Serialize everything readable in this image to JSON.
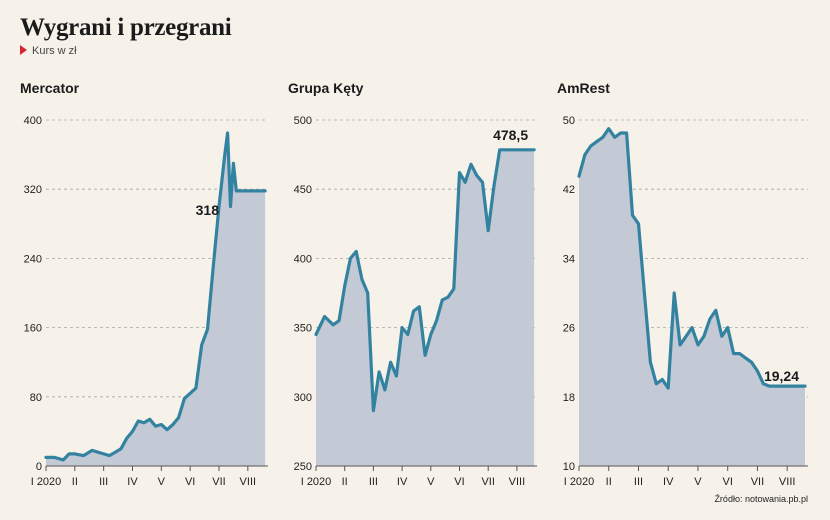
{
  "header": {
    "title": "Wygrani i przegrani",
    "subtitle": "Kurs w zł"
  },
  "source": "Źródło: notowania.pb.pl",
  "colors": {
    "line": "#3383a0",
    "area": "#c4c9d6",
    "marker": "#d6262f",
    "background": "#f6f2ea"
  },
  "chart_data": [
    {
      "type": "area",
      "title": "Mercator",
      "xlabel": "",
      "ylabel": "",
      "x_tick_labels": [
        "I 2020",
        "II",
        "III",
        "IV",
        "V",
        "VI",
        "VII",
        "VIII"
      ],
      "y_ticks": [
        0,
        80,
        160,
        240,
        320,
        400
      ],
      "ylim": [
        0,
        400
      ],
      "xlim": [
        0,
        7.7
      ],
      "grid": true,
      "last_label": "318",
      "series": [
        {
          "x": [
            0,
            0.3,
            0.6,
            0.8,
            1.0,
            1.3,
            1.6,
            1.8,
            2.0,
            2.2,
            2.4,
            2.6,
            2.8,
            3.0,
            3.2,
            3.4,
            3.6,
            3.8,
            4.0,
            4.2,
            4.4,
            4.6,
            4.8,
            5.0,
            5.2,
            5.4,
            5.6,
            5.8,
            6.0,
            6.1,
            6.2,
            6.3,
            6.4,
            6.5,
            6.6,
            6.65,
            6.7,
            6.75,
            6.8,
            6.85,
            6.9,
            6.95,
            7.0,
            7.1,
            7.2,
            7.3,
            7.35,
            7.4,
            7.5,
            7.6
          ],
          "y": [
            10,
            10,
            7,
            14,
            14,
            12,
            18,
            16,
            14,
            12,
            16,
            20,
            32,
            40,
            52,
            50,
            54,
            46,
            48,
            42,
            48,
            56,
            78,
            84,
            90,
            140,
            158,
            230,
            300,
            330,
            360,
            385,
            300,
            350,
            318,
            318,
            318,
            318,
            318,
            318,
            318,
            318,
            318,
            318,
            318,
            318,
            318,
            318,
            318,
            318
          ]
        }
      ]
    },
    {
      "type": "area",
      "title": "Grupa Kęty",
      "xlabel": "",
      "ylabel": "",
      "x_tick_labels": [
        "I 2020",
        "II",
        "III",
        "IV",
        "V",
        "VI",
        "VII",
        "VIII"
      ],
      "y_ticks": [
        250,
        300,
        350,
        400,
        450,
        500
      ],
      "ylim": [
        250,
        500
      ],
      "xlim": [
        0,
        7.7
      ],
      "grid": true,
      "last_label": "478,5",
      "series": [
        {
          "x": [
            0,
            0.3,
            0.6,
            0.8,
            1.0,
            1.2,
            1.4,
            1.6,
            1.8,
            2.0,
            2.2,
            2.4,
            2.6,
            2.8,
            3.0,
            3.2,
            3.4,
            3.6,
            3.8,
            4.0,
            4.2,
            4.4,
            4.6,
            4.8,
            5.0,
            5.2,
            5.4,
            5.6,
            5.8,
            6.0,
            6.2,
            6.4,
            6.6,
            6.8,
            7.0,
            7.2,
            7.4,
            7.6
          ],
          "y": [
            345,
            358,
            352,
            355,
            380,
            400,
            405,
            385,
            375,
            290,
            318,
            305,
            325,
            315,
            350,
            345,
            362,
            365,
            330,
            345,
            355,
            370,
            372,
            378,
            462,
            455,
            468,
            460,
            455,
            420,
            452,
            478.5,
            478.5,
            478.5,
            478.5,
            478.5,
            478.5,
            478.5
          ]
        }
      ]
    },
    {
      "type": "area",
      "title": "AmRest",
      "xlabel": "",
      "ylabel": "",
      "x_tick_labels": [
        "I 2020",
        "II",
        "III",
        "IV",
        "V",
        "VI",
        "VII",
        "VIII"
      ],
      "y_ticks": [
        10,
        18,
        26,
        34,
        42,
        50
      ],
      "ylim": [
        10,
        50
      ],
      "xlim": [
        0,
        7.7
      ],
      "grid": true,
      "last_label": "19,24",
      "series": [
        {
          "x": [
            0,
            0.2,
            0.4,
            0.6,
            0.8,
            1.0,
            1.2,
            1.4,
            1.6,
            1.8,
            2.0,
            2.2,
            2.4,
            2.6,
            2.8,
            3.0,
            3.2,
            3.4,
            3.6,
            3.8,
            4.0,
            4.2,
            4.4,
            4.6,
            4.8,
            5.0,
            5.2,
            5.4,
            5.6,
            5.8,
            6.0,
            6.2,
            6.4,
            6.6,
            6.8,
            7.0,
            7.2,
            7.4,
            7.6
          ],
          "y": [
            43.5,
            46,
            47,
            47.5,
            48,
            49,
            48,
            48.5,
            48.5,
            39,
            38,
            30,
            22,
            19.5,
            20,
            19,
            30,
            24,
            25,
            26,
            24,
            25,
            27,
            28,
            25,
            26,
            23,
            23,
            22.5,
            22,
            21,
            19.5,
            19.24,
            19.24,
            19.24,
            19.24,
            19.24,
            19.24,
            19.24
          ]
        }
      ]
    }
  ]
}
